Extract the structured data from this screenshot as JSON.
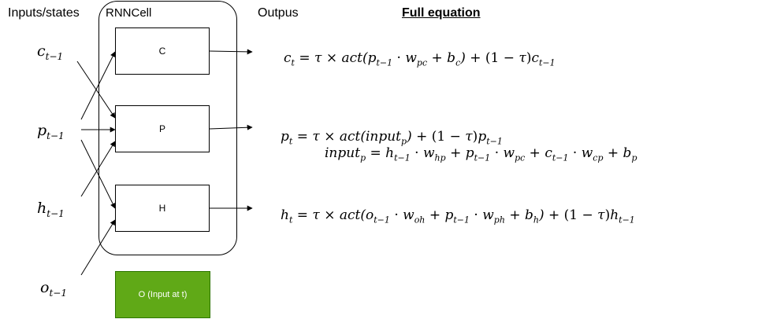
{
  "headers": {
    "inputs_states": "Inputs/states",
    "rnncell": "RNNCell",
    "outputs": "Outpus",
    "full_equation": "Full equation"
  },
  "inputs": {
    "c": {
      "base": "c",
      "sub": "t−1"
    },
    "p": {
      "base": "p",
      "sub": "t−1"
    },
    "h": {
      "base": "h",
      "sub": "t−1"
    },
    "o": {
      "base": "o",
      "sub": "t−1"
    }
  },
  "cells": {
    "c_label": "C",
    "p_label": "P",
    "h_label": "H",
    "o_label": "O (Input at t)"
  },
  "equations": {
    "c_t": "c_t = τ × act(p_{t−1} · w_{pc} + b_c) + (1 − τ)c_{t−1}",
    "p_t": "p_t = τ × act(input_p) + (1 − τ)p_{t−1}",
    "input_p": "input_p = h_{t−1} · w_{hp} + p_{t−1} · w_{pc} + c_{t−1} · w_{cp} + b_p",
    "h_t": "h_t = τ × act(o_{t−1} · w_{oh} + p_{t−1} · w_{ph} + b_h) + (1 − τ)h_{t−1}"
  },
  "colors": {
    "o_box_fill": "#60a917",
    "o_box_stroke": "#2d7600",
    "line": "#000000"
  }
}
